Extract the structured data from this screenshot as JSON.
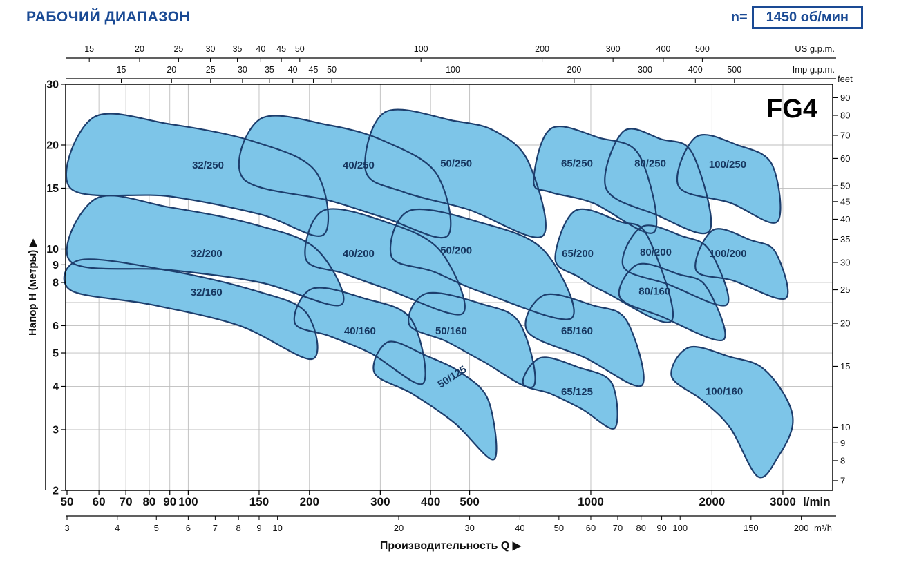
{
  "header": {
    "title": "РАБОЧИЙ ДИАПАЗОН",
    "speed_prefix": "n=",
    "speed_value": "1450 об/мин"
  },
  "chart_data": {
    "type": "area",
    "model": "FG4",
    "x_title": "Производительность Q  ▶",
    "y_title": "Напор H (метры)  ▶",
    "scale": {
      "x": "log",
      "y": "log",
      "x_unit_base": "l/min",
      "x_min": 50,
      "x_max": 3940,
      "y_unit_base": "m",
      "y_min": 2,
      "y_max": 30
    },
    "colors": {
      "region_fill": "#7dc5e8",
      "region_stroke": "#1d3e6d",
      "grid": "#bdbdbd",
      "axis": "#000000",
      "label": "#16365f",
      "accent": "#1a4a94"
    },
    "axes": {
      "us_gpm": {
        "unit": "US g.p.m.",
        "ticks": [
          15,
          20,
          25,
          30,
          35,
          40,
          45,
          50,
          100,
          200,
          300,
          400,
          500
        ]
      },
      "imp_gpm": {
        "unit": "Imp g.p.m.",
        "ticks": [
          15,
          20,
          25,
          30,
          35,
          40,
          45,
          50,
          100,
          200,
          300,
          400,
          500
        ]
      },
      "meters": {
        "ticks": [
          30,
          20,
          15,
          10,
          9,
          8,
          6,
          5,
          4,
          3,
          2
        ],
        "gridlines": [
          20,
          15,
          10,
          9,
          8,
          7,
          6,
          5,
          4,
          3
        ]
      },
      "feet": {
        "unit": "feet",
        "ticks": [
          90,
          80,
          70,
          60,
          50,
          45,
          40,
          35,
          30,
          25,
          20,
          15,
          10,
          9,
          8,
          7
        ]
      },
      "lmin": {
        "unit": "l/min",
        "ticks": [
          50,
          60,
          70,
          80,
          90,
          100,
          150,
          200,
          300,
          400,
          500,
          1000,
          2000,
          3000
        ]
      },
      "m3h": {
        "unit": "m³/h",
        "ticks": [
          3,
          4,
          5,
          6,
          7,
          8,
          9,
          10,
          20,
          30,
          40,
          50,
          60,
          70,
          80,
          90,
          100,
          150,
          200
        ]
      }
    },
    "regions": [
      {
        "name": "32/250",
        "label": [
          112,
          17.5
        ],
        "rot": 0,
        "points": [
          [
            51,
            15.0
          ],
          [
            58,
            24.0
          ],
          [
            90,
            23.0
          ],
          [
            145,
            20.5
          ],
          [
            207,
            16.8
          ],
          [
            217,
            11.0
          ],
          [
            151,
            12.6
          ],
          [
            90,
            14.2
          ]
        ]
      },
      {
        "name": "40/250",
        "label": [
          265,
          17.5
        ],
        "rot": 0,
        "points": [
          [
            137,
            16.0
          ],
          [
            151,
            23.8
          ],
          [
            225,
            22.8
          ],
          [
            308,
            20.5
          ],
          [
            414,
            16.5
          ],
          [
            440,
            10.9
          ],
          [
            308,
            12.3
          ],
          [
            225,
            13.8
          ]
        ]
      },
      {
        "name": "50/250",
        "label": [
          463,
          17.7
        ],
        "rot": 0,
        "points": [
          [
            276,
            16.8
          ],
          [
            308,
            24.9
          ],
          [
            458,
            23.5
          ],
          [
            580,
            21.9
          ],
          [
            701,
            17.8
          ],
          [
            759,
            10.9
          ],
          [
            497,
            13.0
          ],
          [
            344,
            14.6
          ]
        ]
      },
      {
        "name": "65/250",
        "label": [
          924,
          17.7
        ],
        "rot": 0,
        "points": [
          [
            721,
            15.7
          ],
          [
            795,
            22.3
          ],
          [
            1048,
            21.0
          ],
          [
            1319,
            18.7
          ],
          [
            1438,
            11.2
          ],
          [
            1011,
            13.6
          ],
          [
            795,
            14.6
          ]
        ]
      },
      {
        "name": "80/250",
        "label": [
          1405,
          17.7
        ],
        "rot": 0,
        "points": [
          [
            1091,
            15.0
          ],
          [
            1204,
            21.9
          ],
          [
            1496,
            20.8
          ],
          [
            1789,
            18.9
          ],
          [
            1974,
            11.3
          ],
          [
            1445,
            12.6
          ]
        ]
      },
      {
        "name": "100/250",
        "label": [
          2187,
          17.6
        ],
        "rot": 0,
        "points": [
          [
            1652,
            15.2
          ],
          [
            1824,
            21.1
          ],
          [
            2313,
            20.0
          ],
          [
            2817,
            17.6
          ],
          [
            2906,
            12.0
          ],
          [
            2222,
            13.6
          ]
        ]
      },
      {
        "name": "32/200",
        "label": [
          111,
          9.7
        ],
        "rot": 0,
        "points": [
          [
            51,
            9.2
          ],
          [
            59,
            14.0
          ],
          [
            90,
            13.2
          ],
          [
            145,
            11.8
          ],
          [
            208,
            10.0
          ],
          [
            240,
            6.9
          ],
          [
            151,
            8.0
          ],
          [
            90,
            8.7
          ]
        ]
      },
      {
        "name": "40/200",
        "label": [
          265,
          9.7
        ],
        "rot": 0,
        "points": [
          [
            196,
            9.35
          ],
          [
            216,
            12.9
          ],
          [
            308,
            12.0
          ],
          [
            422,
            9.9
          ],
          [
            480,
            6.5
          ],
          [
            308,
            7.7
          ],
          [
            243,
            8.5
          ]
        ]
      },
      {
        "name": "50/200",
        "label": [
          463,
          9.9
        ],
        "rot": 0,
        "points": [
          [
            320,
            9.5
          ],
          [
            354,
            12.9
          ],
          [
            536,
            11.9
          ],
          [
            765,
            9.9
          ],
          [
            895,
            6.3
          ],
          [
            536,
            7.5
          ],
          [
            407,
            8.6
          ]
        ]
      },
      {
        "name": "65/200",
        "label": [
          928,
          9.7
        ],
        "rot": 0,
        "points": [
          [
            816,
            9.35
          ],
          [
            914,
            12.9
          ],
          [
            1181,
            12.0
          ],
          [
            1383,
            10.9
          ],
          [
            1588,
            6.2
          ],
          [
            1086,
            7.5
          ],
          [
            933,
            8.3
          ]
        ]
      },
      {
        "name": "80/200",
        "label": [
          1450,
          9.8
        ],
        "rot": 0,
        "points": [
          [
            1204,
            8.9
          ],
          [
            1340,
            11.6
          ],
          [
            1685,
            10.9
          ],
          [
            1974,
            9.9
          ],
          [
            2178,
            6.9
          ],
          [
            1557,
            7.9
          ]
        ]
      },
      {
        "name": "100/200",
        "label": [
          2191,
          9.7
        ],
        "rot": 0,
        "points": [
          [
            1824,
            8.7
          ],
          [
            2013,
            11.35
          ],
          [
            2503,
            10.6
          ],
          [
            2874,
            9.8
          ],
          [
            3049,
            7.2
          ],
          [
            2258,
            8.1
          ]
        ]
      },
      {
        "name": "32/160",
        "label": [
          111,
          7.5
        ],
        "rot": 0,
        "points": [
          [
            51,
            7.6
          ],
          [
            54,
            9.3
          ],
          [
            90,
            8.65
          ],
          [
            145,
            7.6
          ],
          [
            196,
            6.56
          ],
          [
            203,
            4.8
          ],
          [
            134,
            6.0
          ],
          [
            81,
            6.9
          ]
        ]
      },
      {
        "name": "40/160",
        "label": [
          267,
          5.8
        ],
        "rot": 0,
        "points": [
          [
            184,
            6.1
          ],
          [
            203,
            7.67
          ],
          [
            273,
            7.2
          ],
          [
            358,
            6.26
          ],
          [
            383,
            4.08
          ],
          [
            285,
            4.98
          ],
          [
            225,
            5.59
          ]
        ]
      },
      {
        "name": "50/160",
        "label": [
          450,
          5.8
        ],
        "rot": 0,
        "points": [
          [
            354,
            6.04
          ],
          [
            390,
            7.43
          ],
          [
            536,
            6.93
          ],
          [
            666,
            6.1
          ],
          [
            720,
            4.0
          ],
          [
            536,
            4.75
          ],
          [
            438,
            5.4
          ]
        ]
      },
      {
        "name": "65/160",
        "label": [
          924,
          5.8
        ],
        "rot": 0,
        "points": [
          [
            696,
            5.77
          ],
          [
            765,
            7.35
          ],
          [
            1011,
            6.87
          ],
          [
            1228,
            6.2
          ],
          [
            1340,
            4.03
          ],
          [
            969,
            4.84
          ]
        ]
      },
      {
        "name": "80/160",
        "label": [
          1440,
          7.55
        ],
        "rot": 0,
        "points": [
          [
            1180,
            7.26
          ],
          [
            1308,
            9.02
          ],
          [
            1652,
            8.45
          ],
          [
            1935,
            7.78
          ],
          [
            2135,
            5.46
          ],
          [
            1496,
            6.38
          ]
        ]
      },
      {
        "name": "100/160",
        "label": [
          2145,
          3.87
        ],
        "rot": 0,
        "points": [
          [
            1587,
            4.28
          ],
          [
            1754,
            5.19
          ],
          [
            2222,
            4.87
          ],
          [
            2658,
            4.54
          ],
          [
            3049,
            3.72
          ],
          [
            3173,
            3.1
          ],
          [
            2930,
            2.52
          ],
          [
            2603,
            2.19
          ],
          [
            2222,
            3.03
          ],
          [
            1897,
            3.64
          ]
        ]
      },
      {
        "name": "50/125",
        "label": [
          457,
          4.28
        ],
        "rot": -33,
        "points": [
          [
            290,
            4.38
          ],
          [
            314,
            5.38
          ],
          [
            390,
            4.91
          ],
          [
            476,
            4.38
          ],
          [
            557,
            3.64
          ],
          [
            575,
            2.46
          ],
          [
            458,
            3.14
          ],
          [
            360,
            3.81
          ]
        ]
      },
      {
        "name": "65/125",
        "label": [
          924,
          3.86
        ],
        "rot": 0,
        "points": [
          [
            679,
            4.08
          ],
          [
            750,
            4.84
          ],
          [
            933,
            4.54
          ],
          [
            1126,
            4.1
          ],
          [
            1147,
            3.03
          ],
          [
            950,
            3.44
          ],
          [
            795,
            3.81
          ]
        ]
      }
    ]
  }
}
